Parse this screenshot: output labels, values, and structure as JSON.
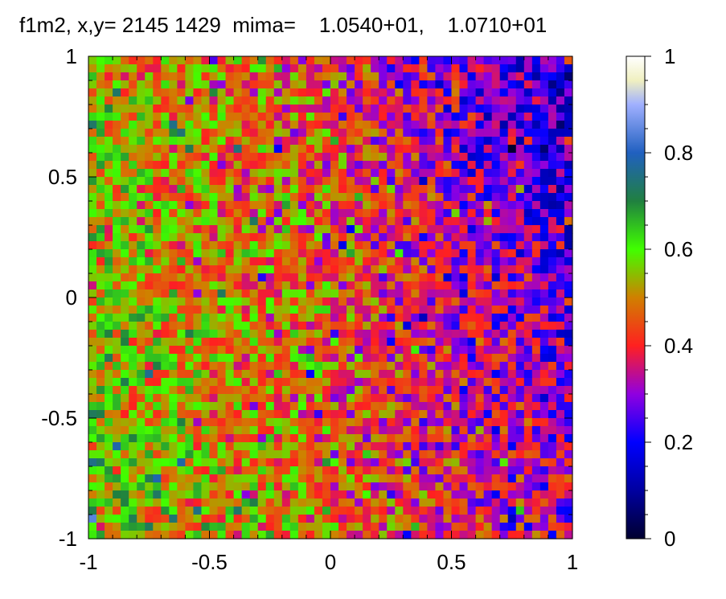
{
  "chart_data": {
    "type": "heatmap",
    "title": "f1m2, x,y= 2145 1429  mima=    1.0540+01,    1.0710+01",
    "xlim": [
      -1,
      1
    ],
    "ylim": [
      -1,
      1
    ],
    "x_ticks": [
      "-1",
      "-0.5",
      "0",
      "0.5",
      "1"
    ],
    "y_ticks": [
      "1",
      "0.5",
      "0",
      "-0.5",
      "-1"
    ],
    "colorbar": {
      "range": [
        0,
        1
      ],
      "ticks": [
        "1",
        "0.8",
        "0.6",
        "0.4",
        "0.2",
        "0"
      ],
      "colormap": [
        {
          "v": 0.0,
          "color": "#000030"
        },
        {
          "v": 0.1,
          "color": "#0000a0"
        },
        {
          "v": 0.2,
          "color": "#0000ff"
        },
        {
          "v": 0.3,
          "color": "#9000e0"
        },
        {
          "v": 0.4,
          "color": "#ff2020"
        },
        {
          "v": 0.5,
          "color": "#d08000"
        },
        {
          "v": 0.6,
          "color": "#40ff00"
        },
        {
          "v": 0.7,
          "color": "#208040"
        },
        {
          "v": 0.8,
          "color": "#2060c0"
        },
        {
          "v": 0.9,
          "color": "#a0b0ff"
        },
        {
          "v": 0.95,
          "color": "#f0f0c0"
        },
        {
          "v": 1.0,
          "color": "#ffffff"
        }
      ]
    },
    "grid_shape": [
      60,
      60
    ],
    "field": "mostly 0.25-0.60; green/orange (0.45-0.60) over left and lower-left, blue/violet (0.15-0.30) over right and upper-right"
  }
}
